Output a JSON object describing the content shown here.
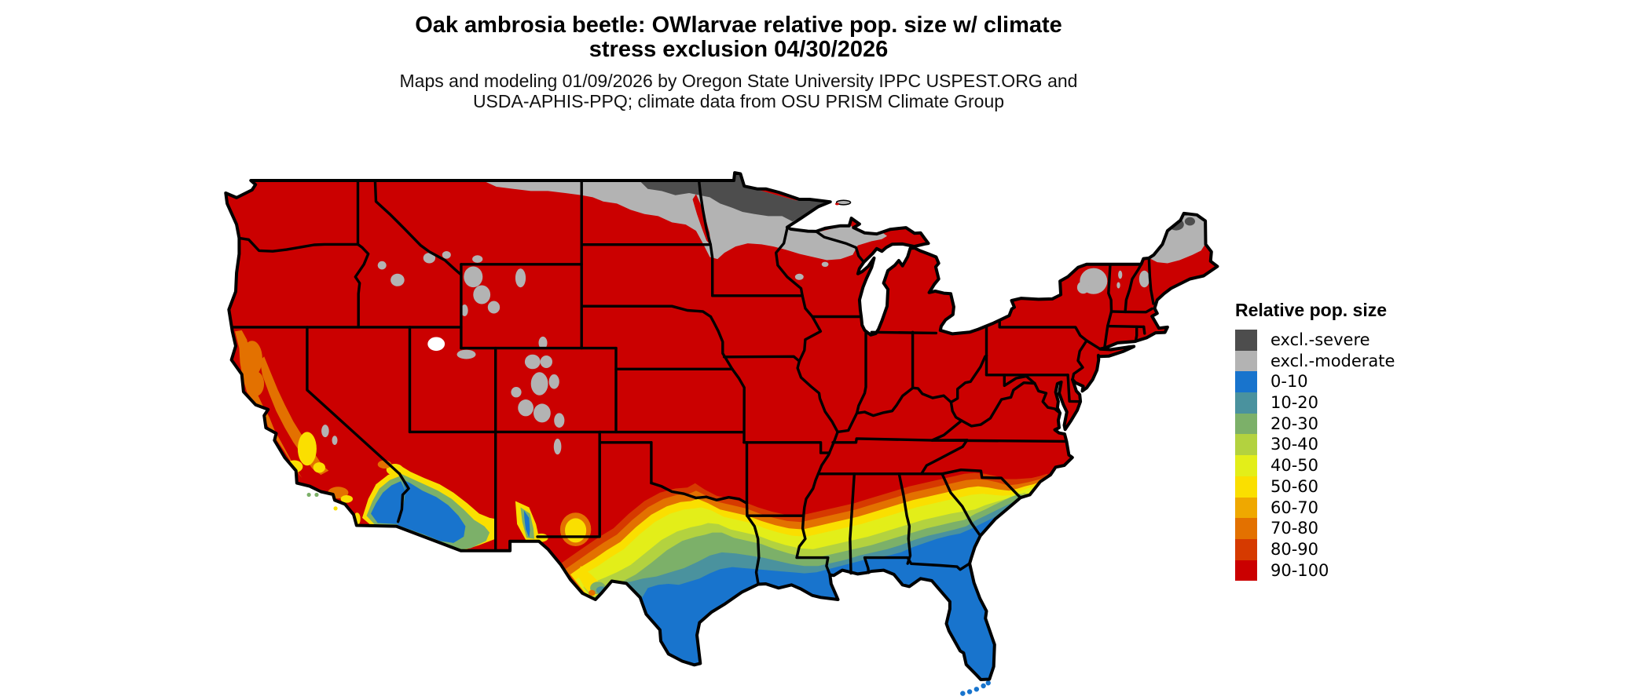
{
  "title": {
    "line1": "Oak ambrosia beetle: OWlarvae relative pop. size w/ climate",
    "line2": "stress exclusion 04/30/2026"
  },
  "subtitle": {
    "line1": "Maps and modeling 01/09/2026 by Oregon State University IPPC USPEST.ORG and",
    "line2": "USDA-APHIS-PPQ; climate data from OSU PRISM Climate Group"
  },
  "legend": {
    "title": "Relative pop. size",
    "entries": [
      {
        "label": "excl.-severe",
        "color": "#4d4d4d"
      },
      {
        "label": "excl.-moderate",
        "color": "#b3b3b3"
      },
      {
        "label": "0-10",
        "color": "#1874cd"
      },
      {
        "label": "10-20",
        "color": "#4a929e"
      },
      {
        "label": "20-30",
        "color": "#7cb069"
      },
      {
        "label": "30-40",
        "color": "#b3d23f"
      },
      {
        "label": "40-50",
        "color": "#e3ee19"
      },
      {
        "label": "50-60",
        "color": "#fadf00"
      },
      {
        "label": "60-70",
        "color": "#efa800"
      },
      {
        "label": "70-80",
        "color": "#e37100"
      },
      {
        "label": "80-90",
        "color": "#d63a00"
      },
      {
        "label": "90-100",
        "color": "#cb0000"
      }
    ]
  },
  "map": {
    "region": "Contiguous United States",
    "border_color": "#000000",
    "water_color": "#ffffff",
    "dominant_class": "90-100"
  }
}
